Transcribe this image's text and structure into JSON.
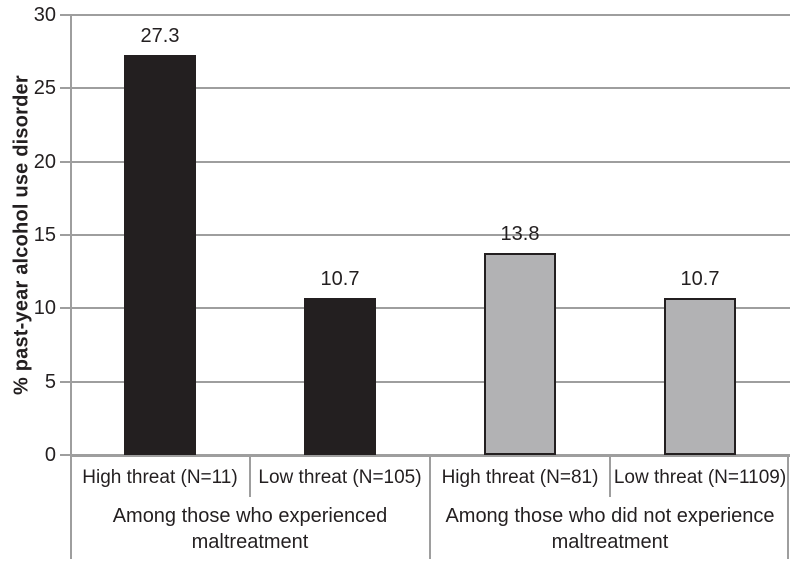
{
  "chart_data": {
    "type": "bar",
    "title": "",
    "ylabel": "% past-year alcohol use disorder",
    "xlabel": "",
    "ylim": [
      0,
      30
    ],
    "yticks": [
      0,
      5,
      10,
      15,
      20,
      25,
      30
    ],
    "grid": "horizontal",
    "legend": "none",
    "categories": [
      "High threat (N=11)",
      "Low threat (N=105)",
      "High threat (N=81)",
      "Low threat (N=1109)"
    ],
    "values": [
      27.3,
      10.7,
      13.8,
      10.7
    ],
    "value_labels": [
      "27.3",
      "10.7",
      "13.8",
      "10.7"
    ],
    "bar_colors": [
      "#231f20",
      "#231f20",
      "#b2b2b4",
      "#b2b2b4"
    ],
    "bar_border_color": "#231f20",
    "groups": [
      {
        "label": "Among those who experienced maltreatment",
        "start": 0,
        "end": 2
      },
      {
        "label": "Among those who did not experience maltreatment",
        "start": 2,
        "end": 4
      }
    ],
    "colors": {
      "axis": "#9e9e9e",
      "gridline": "#9e9e9e",
      "text": "#231f20",
      "background": "#ffffff"
    }
  }
}
